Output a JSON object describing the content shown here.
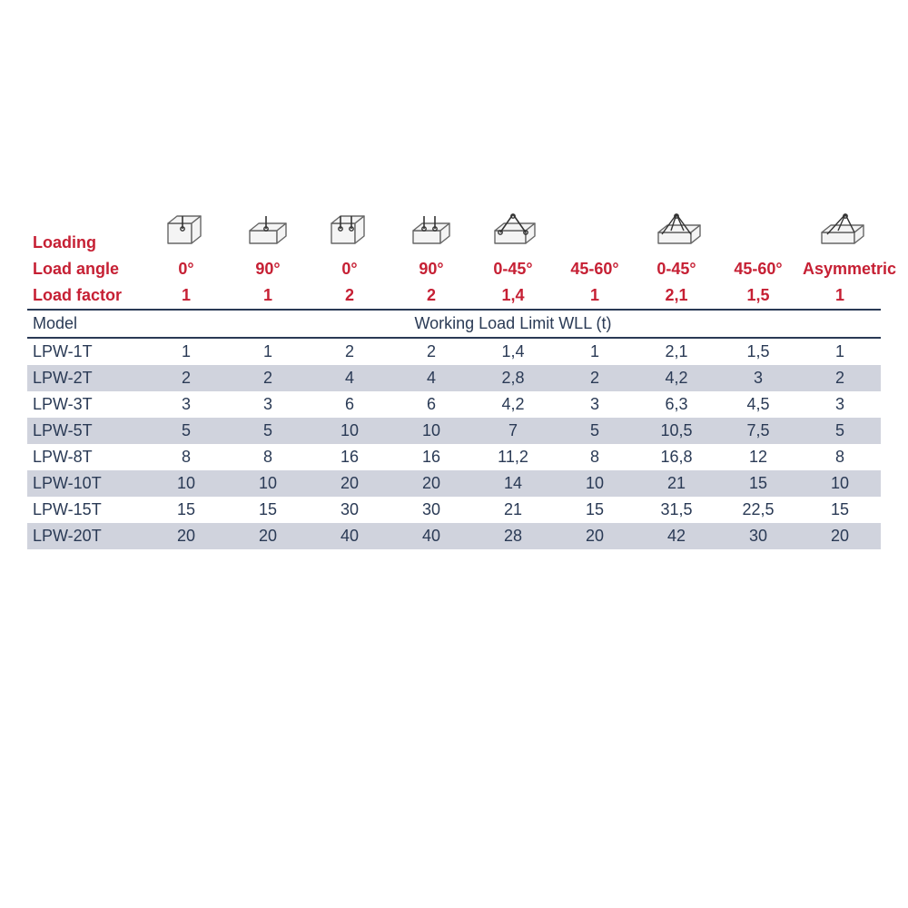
{
  "labels": {
    "loading": "Loading",
    "load_angle": "Load angle",
    "load_factor": "Load factor",
    "model": "Model",
    "wll": "Working Load Limit WLL (t)"
  },
  "columns": [
    {
      "angle": "0°",
      "factor": "1",
      "icon": "single_top"
    },
    {
      "angle": "90°",
      "factor": "1",
      "icon": "single_side"
    },
    {
      "angle": "0°",
      "factor": "2",
      "icon": "double_top"
    },
    {
      "angle": "90°",
      "factor": "2",
      "icon": "double_side"
    },
    {
      "angle": "0-45°",
      "factor": "1,4",
      "icon": "sling2"
    },
    {
      "angle": "45-60°",
      "factor": "1",
      "icon": ""
    },
    {
      "angle": "0-45°",
      "factor": "2,1",
      "icon": "sling4"
    },
    {
      "angle": "45-60°",
      "factor": "1,5",
      "icon": ""
    },
    {
      "angle": "Asymmetric",
      "factor": "1",
      "icon": "asym"
    }
  ],
  "rows": [
    {
      "model": "LPW-1T",
      "v": [
        "1",
        "1",
        "2",
        "2",
        "1,4",
        "1",
        "2,1",
        "1,5",
        "1"
      ]
    },
    {
      "model": "LPW-2T",
      "v": [
        "2",
        "2",
        "4",
        "4",
        "2,8",
        "2",
        "4,2",
        "3",
        "2"
      ]
    },
    {
      "model": "LPW-3T",
      "v": [
        "3",
        "3",
        "6",
        "6",
        "4,2",
        "3",
        "6,3",
        "4,5",
        "3"
      ]
    },
    {
      "model": "LPW-5T",
      "v": [
        "5",
        "5",
        "10",
        "10",
        "7",
        "5",
        "10,5",
        "7,5",
        "5"
      ]
    },
    {
      "model": "LPW-8T",
      "v": [
        "8",
        "8",
        "16",
        "16",
        "11,2",
        "8",
        "16,8",
        "12",
        "8"
      ]
    },
    {
      "model": "LPW-10T",
      "v": [
        "10",
        "10",
        "20",
        "20",
        "14",
        "10",
        "21",
        "15",
        "10"
      ]
    },
    {
      "model": "LPW-15T",
      "v": [
        "15",
        "15",
        "30",
        "30",
        "21",
        "15",
        "31,5",
        "22,5",
        "15"
      ]
    },
    {
      "model": "LPW-20T",
      "v": [
        "20",
        "20",
        "40",
        "40",
        "28",
        "20",
        "42",
        "30",
        "20"
      ]
    }
  ],
  "colors": {
    "red": "#c62034",
    "text": "#2a3a55",
    "stripe": "#d0d3dd",
    "bg": "#ffffff"
  }
}
